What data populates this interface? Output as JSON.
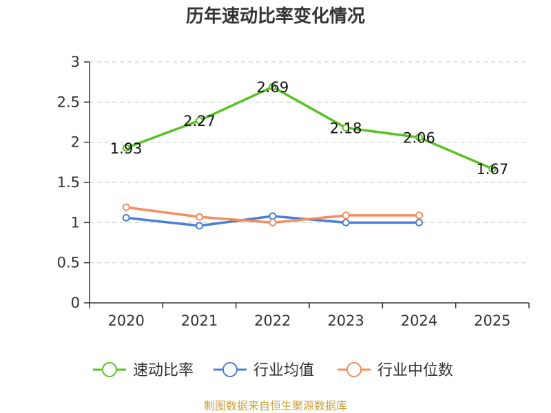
{
  "chart_data": {
    "type": "line",
    "title": "历年速动比率变化情况",
    "categories": [
      "2020",
      "2021",
      "2022",
      "2023",
      "2024",
      "2025"
    ],
    "ylim": [
      0,
      3
    ],
    "yticks": [
      "0",
      "0.5",
      "1",
      "1.5",
      "2",
      "2.5",
      "3"
    ],
    "grid": true,
    "legend_position": "bottom",
    "series": [
      {
        "name": "速动比率",
        "color": "#5ac125",
        "values": [
          1.93,
          2.27,
          2.69,
          2.18,
          2.06,
          1.67
        ],
        "labels": [
          "1.93",
          "2.27",
          "2.69",
          "2.18",
          "2.06",
          "1.67"
        ],
        "show_labels": true
      },
      {
        "name": "行业均值",
        "color": "#4a7fd6",
        "values": [
          1.06,
          0.96,
          1.08,
          1.0,
          1.0,
          null
        ],
        "show_labels": false
      },
      {
        "name": "行业中位数",
        "color": "#f78c5c",
        "values": [
          1.19,
          1.07,
          1.0,
          1.09,
          1.09,
          null
        ],
        "show_labels": false
      }
    ]
  },
  "source_text": "制图数据来自恒生聚源数据库"
}
